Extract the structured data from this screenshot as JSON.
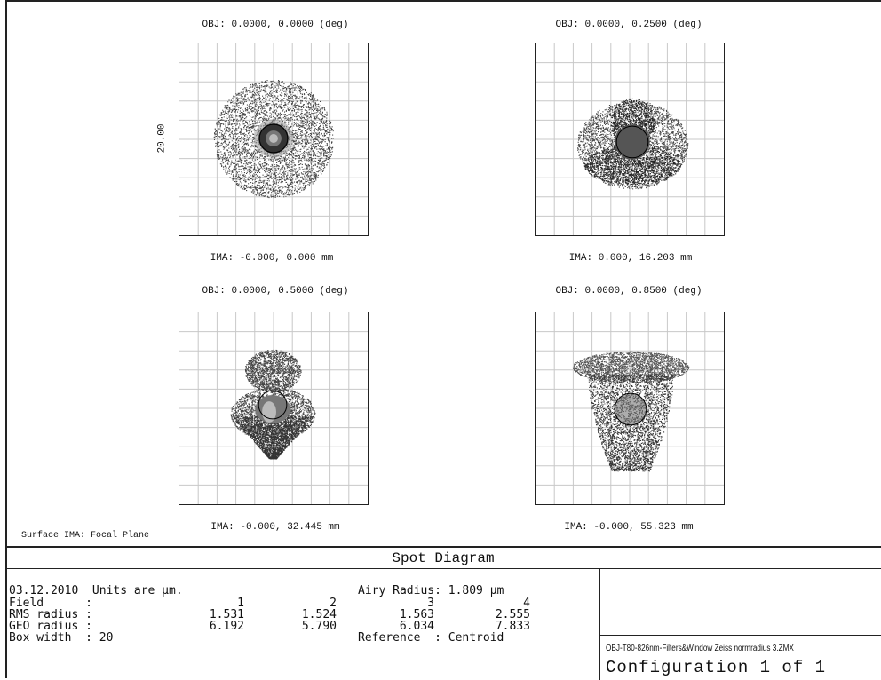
{
  "diagrams": [
    {
      "obj": "OBJ: 0.0000, 0.0000 (deg)",
      "ima": "IMA: -0.000, 0.000 mm"
    },
    {
      "obj": "OBJ: 0.0000, 0.2500 (deg)",
      "ima": "IMA: 0.000, 16.203 mm"
    },
    {
      "obj": "OBJ: 0.0000, 0.5000 (deg)",
      "ima": "IMA: -0.000, 32.445 mm"
    },
    {
      "obj": "OBJ: 0.0000, 0.8500 (deg)",
      "ima": "IMA: -0.000, 55.323 mm"
    }
  ],
  "box_width_label": "20.00",
  "surface_label": "Surface IMA: Focal Plane",
  "title": "Spot Diagram",
  "info": {
    "date_units": "03.12.2010  Units are µm.",
    "airy": "Airy Radius: 1.809 µm",
    "field_label": "Field      :",
    "rms_label": "RMS radius :",
    "geo_label": "GEO radius :",
    "box_label": "Box width  : 20",
    "reference": "Reference  : Centroid",
    "fields": [
      "1",
      "2",
      "3",
      "4"
    ],
    "rms": [
      "1.531",
      "1.524",
      "1.563",
      "2.555"
    ],
    "geo": [
      "6.192",
      "5.790",
      "6.034",
      "7.833"
    ]
  },
  "file_name": "OBJ-T80-826nm-Filters&Window Zeiss normradius 3.ZMX",
  "configuration": "Configuration 1 of 1",
  "colors": {
    "grid": "#c8c8c8",
    "dots": "#333333",
    "dense": "#555555",
    "circle": "#000000"
  }
}
